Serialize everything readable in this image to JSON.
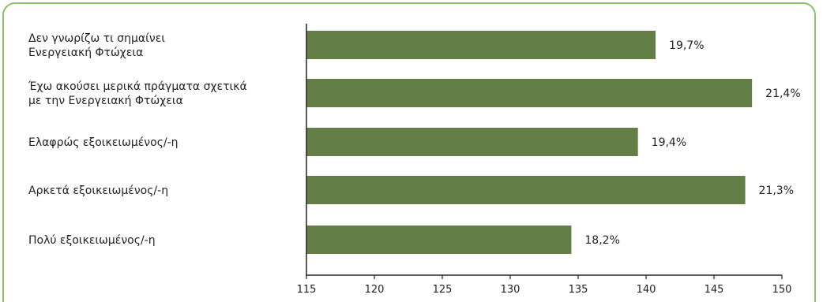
{
  "chart_data": {
    "type": "bar",
    "orientation": "horizontal",
    "categories": [
      [
        "Δεν γνωρίζω τι σημαίνει",
        "Ενεργειακή Φτώχεια"
      ],
      [
        "Έχω ακούσει μερικά πράγματα σχετικά",
        "με την Ενεργειακή Φτώχεια"
      ],
      [
        "Ελαφρώς εξοικειωμένος/-η"
      ],
      [
        "Αρκετά εξοικειωμένος/-η"
      ],
      [
        "Πολύ εξοικειωμένος/-η"
      ]
    ],
    "values": [
      140.7,
      147.8,
      139.4,
      147.3,
      134.5
    ],
    "value_labels": [
      "19,7%",
      "21,4%",
      "19,4%",
      "21,3%",
      "18,2%"
    ],
    "xlim": [
      115,
      150
    ],
    "xticks": [
      115,
      120,
      125,
      130,
      135,
      140,
      145,
      150
    ],
    "bar_color": "#637f47",
    "border_color": "#8cc06a",
    "grid": false
  }
}
